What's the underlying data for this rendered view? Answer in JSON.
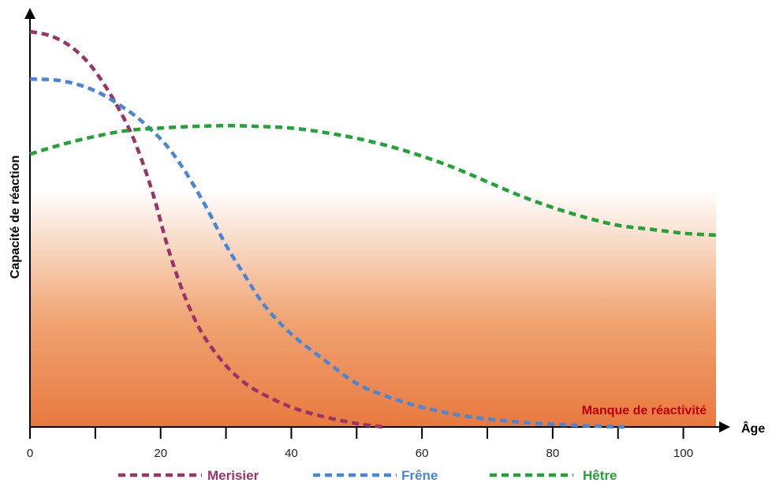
{
  "chart_data": {
    "type": "line",
    "title": "",
    "xlabel": "Âge",
    "ylabel": "Capacité de réaction",
    "xlim": [
      0,
      105
    ],
    "ylim": [
      0,
      1
    ],
    "x_ticks": [
      0,
      20,
      40,
      60,
      80,
      100
    ],
    "x_minor_ticks": [
      10,
      30,
      50,
      70,
      90
    ],
    "grid": false,
    "legend_position": "bottom",
    "zone": {
      "label": "Manque de réactivité",
      "y_from": 0,
      "y_to": 0.6,
      "color_bottom": "#e8793f",
      "color_top": "#ffffff",
      "label_color": "#c00000"
    },
    "series": [
      {
        "name": "Merisier",
        "color": "#9b3466",
        "x": [
          0,
          3,
          6,
          9,
          12,
          15,
          17,
          19,
          21,
          23,
          25,
          27,
          30,
          33,
          36,
          40,
          44,
          48,
          51,
          54
        ],
        "y": [
          1.0,
          0.99,
          0.965,
          0.92,
          0.85,
          0.76,
          0.68,
          0.58,
          0.46,
          0.36,
          0.28,
          0.22,
          0.155,
          0.11,
          0.08,
          0.05,
          0.03,
          0.015,
          0.006,
          0.0
        ]
      },
      {
        "name": "Frêne",
        "color": "#4a86d6",
        "x": [
          0,
          5,
          10,
          15,
          18,
          21,
          24,
          27,
          30,
          33,
          36,
          40,
          45,
          50,
          55,
          60,
          65,
          70,
          75,
          80,
          85,
          91
        ],
        "y": [
          0.88,
          0.875,
          0.85,
          0.8,
          0.76,
          0.71,
          0.64,
          0.555,
          0.46,
          0.38,
          0.305,
          0.235,
          0.17,
          0.11,
          0.075,
          0.05,
          0.032,
          0.02,
          0.012,
          0.007,
          0.003,
          0.0
        ]
      },
      {
        "name": "Hêtre",
        "color": "#21a33a",
        "x": [
          0,
          5,
          10,
          15,
          20,
          25,
          30,
          35,
          40,
          45,
          50,
          55,
          60,
          65,
          70,
          75,
          80,
          85,
          90,
          95,
          100,
          105
        ],
        "y": [
          0.69,
          0.715,
          0.735,
          0.75,
          0.756,
          0.76,
          0.762,
          0.76,
          0.756,
          0.745,
          0.73,
          0.71,
          0.685,
          0.655,
          0.62,
          0.585,
          0.555,
          0.53,
          0.51,
          0.5,
          0.49,
          0.485
        ]
      }
    ]
  }
}
